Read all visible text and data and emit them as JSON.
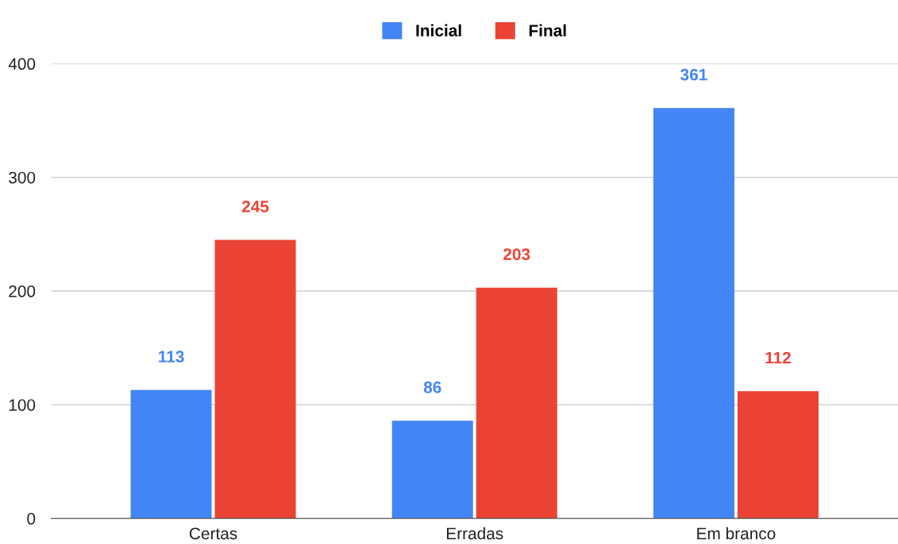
{
  "chart_data": {
    "type": "bar",
    "categories": [
      "Certas",
      "Erradas",
      "Em branco"
    ],
    "series": [
      {
        "name": "Inicial",
        "color": "#4285f4",
        "values": [
          113,
          86,
          361
        ]
      },
      {
        "name": "Final",
        "color": "#ea4335",
        "values": [
          245,
          203,
          112
        ]
      }
    ],
    "ylim": [
      0,
      400
    ],
    "yticks": [
      0,
      100,
      200,
      300,
      400
    ],
    "grid": "y",
    "legend": "top",
    "data_labels": true
  }
}
